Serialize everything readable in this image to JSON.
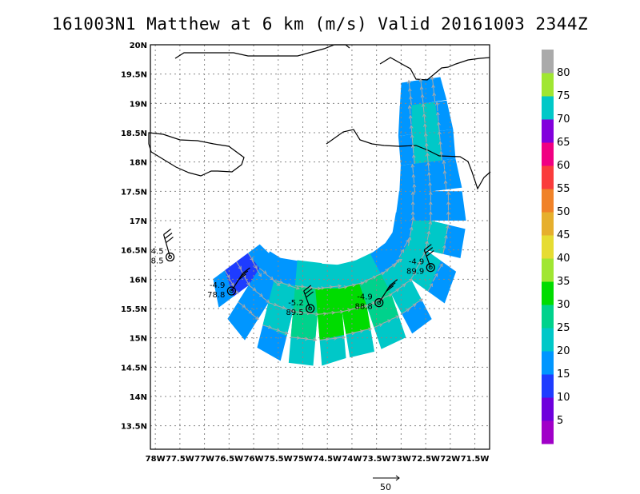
{
  "title": "161003N1 Matthew at 6 km (m/s) Valid 20161003 2344Z",
  "map": {
    "lon_range": [
      -78.1,
      -71.2
    ],
    "lat_range": [
      13.1,
      20.0
    ],
    "lon_tick_labels": [
      "78W",
      "77.5W",
      "77W",
      "76.5W",
      "76W",
      "75.5W",
      "75W",
      "74.5W",
      "74W",
      "73.5W",
      "73W",
      "72.5W",
      "72W",
      "71.5W"
    ],
    "lon_tick_values": [
      -78,
      -77.5,
      -77,
      -76.5,
      -76,
      -75.5,
      -75,
      -74.5,
      -74,
      -73.5,
      -73,
      -72.5,
      -72,
      -71.5
    ],
    "lat_tick_labels": [
      "20N",
      "19.5N",
      "19N",
      "18.5N",
      "18N",
      "17.5N",
      "17N",
      "16.5N",
      "16N",
      "15.5N",
      "15N",
      "14.5N",
      "14N",
      "13.5N"
    ],
    "lat_tick_values": [
      20,
      19.5,
      19,
      18.5,
      18,
      17.5,
      17,
      16.5,
      16,
      15.5,
      15,
      14.5,
      14,
      13.5
    ],
    "grid": true,
    "grid_style": "dotted",
    "centers": [
      {
        "lon": -77.7,
        "lat": 16.38,
        "label_top": "4.5",
        "label_bottom": "8.5"
      },
      {
        "lon": -76.45,
        "lat": 15.8,
        "label_top": "-4.9",
        "label_bottom": "78.8"
      },
      {
        "lon": -74.85,
        "lat": 15.5,
        "label_top": "-5.2",
        "label_bottom": "89.5"
      },
      {
        "lon": -73.45,
        "lat": 15.6,
        "label_top": "-4.9",
        "label_bottom": "88.8"
      },
      {
        "lon": -72.4,
        "lat": 16.2,
        "label_top": "-4.9",
        "label_bottom": "89.9"
      }
    ]
  },
  "colorbar": {
    "labels": [
      "5",
      "10",
      "15",
      "20",
      "25",
      "30",
      "35",
      "40",
      "45",
      "50",
      "55",
      "60",
      "65",
      "70",
      "75",
      "80"
    ],
    "colors": [
      "#a000c8",
      "#6e00dc",
      "#1e3cff",
      "#0096ff",
      "#00c8c8",
      "#00d28c",
      "#00dc00",
      "#a0e632",
      "#e6dc32",
      "#e6af2d",
      "#f08228",
      "#fa3c3c",
      "#f00082",
      "#8200dc",
      "#00c8c8",
      "#a0e632",
      "#aaaaaa"
    ]
  },
  "wind_color_scale": {
    "level_boundaries": [
      0,
      5,
      10,
      15,
      20,
      25,
      30,
      35,
      40,
      45,
      50,
      55,
      60,
      65,
      70,
      75,
      80
    ],
    "colors": [
      "#a000c8",
      "#6e00dc",
      "#1e3cff",
      "#0096ff",
      "#00c8c8",
      "#00d28c",
      "#00dc00",
      "#a0e632",
      "#e6dc32",
      "#e6af2d",
      "#f08228",
      "#fa3c3c",
      "#f00082",
      "#8200dc",
      "#00c8c8",
      "#a0e632",
      "#aaaaaa"
    ]
  },
  "vector_legend": {
    "label": "50"
  }
}
